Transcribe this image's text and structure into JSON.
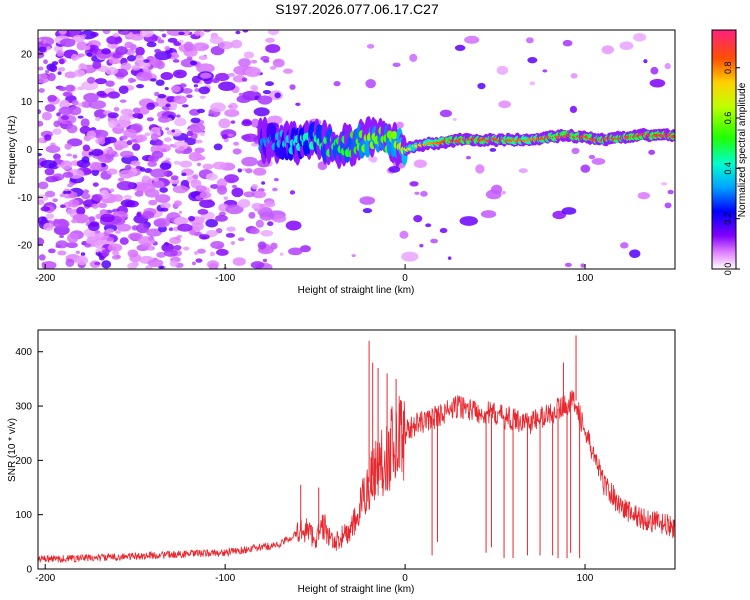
{
  "figure_title": "S197.2026.077.06.17.C27",
  "chart_data": [
    {
      "type": "heatmap",
      "title": "S197.2026.077.06.17.C27",
      "xlabel": "Height of straight line (km)",
      "ylabel": "Frequency (Hz)",
      "xlim": [
        -204,
        150
      ],
      "ylim": [
        -25,
        25
      ],
      "xticks": [
        -200,
        -100,
        0,
        100
      ],
      "xtick_labels": [
        "-200",
        "-100",
        "0",
        "100"
      ],
      "yticks": [
        -20,
        -10,
        0,
        10,
        20
      ],
      "ytick_labels": [
        "-20",
        "-10",
        "0",
        "10",
        "20"
      ],
      "colorbar": {
        "label": "Normalized spectral amplitude",
        "range": [
          0,
          0.95
        ],
        "ticks": [
          0,
          0.2,
          0.4,
          0.6,
          0.8
        ],
        "tick_labels": [
          "0.0",
          "0.2",
          "0.4",
          "0.6",
          "0.8"
        ]
      },
      "ridge": {
        "description": "dominant frequency ridge",
        "x": [
          -80,
          -60,
          -50,
          -40,
          -30,
          -20,
          -10,
          0,
          10,
          30,
          50,
          70,
          90,
          110,
          130,
          150
        ],
        "y": [
          2,
          1,
          2,
          0.5,
          1,
          2,
          2,
          0,
          1,
          2,
          2,
          2,
          3,
          2,
          3,
          3
        ],
        "peak_amplitude": [
          0.3,
          0.4,
          0.45,
          0.5,
          0.5,
          0.6,
          0.55,
          0.65,
          0.75,
          0.9,
          0.85,
          0.8,
          0.9,
          0.85,
          0.9,
          0.9
        ]
      }
    },
    {
      "type": "line",
      "title": "",
      "xlabel": "Height of straight line (km)",
      "ylabel": "SNR (10 * v/v)",
      "xlim": [
        -204,
        150
      ],
      "ylim": [
        0,
        440
      ],
      "xticks": [
        -200,
        -100,
        0,
        100
      ],
      "xtick_labels": [
        "-200",
        "-100",
        "0",
        "100"
      ],
      "yticks": [
        0,
        100,
        200,
        300,
        400
      ],
      "ytick_labels": [
        "0",
        "100",
        "200",
        "300",
        "400"
      ],
      "series": [
        {
          "name": "SNR",
          "color": "#e8272e",
          "x": [
            -204,
            -180,
            -160,
            -140,
            -120,
            -100,
            -80,
            -70,
            -60,
            -55,
            -50,
            -45,
            -40,
            -35,
            -30,
            -25,
            -20,
            -15,
            -10,
            -5,
            0,
            5,
            10,
            20,
            30,
            40,
            50,
            60,
            70,
            80,
            90,
            95,
            100,
            105,
            110,
            120,
            130,
            140,
            150
          ],
          "y": [
            18,
            20,
            22,
            25,
            28,
            30,
            40,
            45,
            65,
            75,
            55,
            80,
            45,
            60,
            70,
            110,
            160,
            190,
            210,
            240,
            250,
            265,
            270,
            285,
            300,
            290,
            285,
            275,
            270,
            285,
            305,
            310,
            250,
            210,
            160,
            115,
            95,
            85,
            75
          ]
        }
      ],
      "spikes": [
        {
          "x": -58,
          "y": 155
        },
        {
          "x": -48,
          "y": 150
        },
        {
          "x": -20,
          "y": 420
        },
        {
          "x": -18,
          "y": 380
        },
        {
          "x": -15,
          "y": 370
        },
        {
          "x": -10,
          "y": 360
        },
        {
          "x": -5,
          "y": 350
        },
        {
          "x": 95,
          "y": 430
        },
        {
          "x": 88,
          "y": 380
        }
      ],
      "dropouts": [
        {
          "x": 15,
          "y": 25
        },
        {
          "x": 18,
          "y": 50
        },
        {
          "x": 45,
          "y": 30
        },
        {
          "x": 48,
          "y": 40
        },
        {
          "x": 55,
          "y": 20
        },
        {
          "x": 60,
          "y": 20
        },
        {
          "x": 68,
          "y": 25
        },
        {
          "x": 75,
          "y": 25
        },
        {
          "x": 82,
          "y": 25
        },
        {
          "x": 85,
          "y": 20
        },
        {
          "x": 90,
          "y": 20
        },
        {
          "x": 92,
          "y": 30
        },
        {
          "x": 97,
          "y": 20
        }
      ]
    }
  ]
}
